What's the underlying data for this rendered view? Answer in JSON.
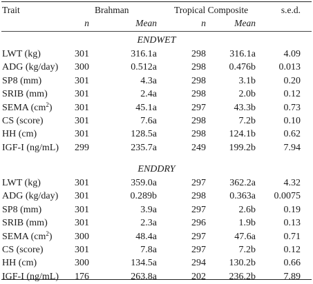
{
  "header": {
    "trait": "Trait",
    "brahman": "Brahman",
    "tropical": "Tropical Composite",
    "sed": "s.e.d.",
    "n": "n",
    "mean": "Mean",
    "n2": "n",
    "mean2": "Mean"
  },
  "sections": [
    {
      "title": "ENDWET",
      "rows": [
        {
          "trait": "LWT (kg)",
          "sup": "",
          "trait_after": "",
          "bn": "301",
          "bm": "316.1a",
          "tn": "298",
          "tm": "316.1a",
          "sed": "4.09"
        },
        {
          "trait": "ADG (kg/day)",
          "sup": "",
          "trait_after": "",
          "bn": "300",
          "bm": "0.512a",
          "tn": "298",
          "tm": "0.476b",
          "sed": "0.013"
        },
        {
          "trait": "SP8 (mm)",
          "sup": "",
          "trait_after": "",
          "bn": "301",
          "bm": "4.3a",
          "tn": "298",
          "tm": "3.1b",
          "sed": "0.20"
        },
        {
          "trait": "SRIB (mm)",
          "sup": "",
          "trait_after": "",
          "bn": "301",
          "bm": "2.4a",
          "tn": "298",
          "tm": "2.0b",
          "sed": "0.12"
        },
        {
          "trait": "SEMA (cm",
          "sup": "2",
          "trait_after": ")",
          "bn": "301",
          "bm": "45.1a",
          "tn": "297",
          "tm": "43.3b",
          "sed": "0.73"
        },
        {
          "trait": "CS (score)",
          "sup": "",
          "trait_after": "",
          "bn": "301",
          "bm": "7.6a",
          "tn": "298",
          "tm": "7.2b",
          "sed": "0.10"
        },
        {
          "trait": "HH (cm)",
          "sup": "",
          "trait_after": "",
          "bn": "301",
          "bm": "128.5a",
          "tn": "298",
          "tm": "124.1b",
          "sed": "0.62"
        },
        {
          "trait": "IGF-I (ng/mL)",
          "sup": "",
          "trait_after": "",
          "bn": "299",
          "bm": "235.7a",
          "tn": "249",
          "tm": "199.2b",
          "sed": "7.94"
        }
      ]
    },
    {
      "title": "ENDDRY",
      "rows": [
        {
          "trait": "LWT (kg)",
          "sup": "",
          "trait_after": "",
          "bn": "301",
          "bm": "359.0a",
          "tn": "297",
          "tm": "362.2a",
          "sed": "4.32"
        },
        {
          "trait": "ADG (kg/day)",
          "sup": "",
          "trait_after": "",
          "bn": "301",
          "bm": "0.289b",
          "tn": "298",
          "tm": "0.363a",
          "sed": "0.0075"
        },
        {
          "trait": "SP8 (mm)",
          "sup": "",
          "trait_after": "",
          "bn": "301",
          "bm": "3.9a",
          "tn": "297",
          "tm": "2.6b",
          "sed": "0.19"
        },
        {
          "trait": "SRIB (mm)",
          "sup": "",
          "trait_after": "",
          "bn": "301",
          "bm": "2.3a",
          "tn": "296",
          "tm": "1.9b",
          "sed": "0.13"
        },
        {
          "trait": "SEMA (cm",
          "sup": "2",
          "trait_after": ")",
          "bn": "300",
          "bm": "48.4a",
          "tn": "297",
          "tm": "47.6a",
          "sed": "0.71"
        },
        {
          "trait": "CS (score)",
          "sup": "",
          "trait_after": "",
          "bn": "301",
          "bm": "7.8a",
          "tn": "297",
          "tm": "7.2b",
          "sed": "0.12"
        },
        {
          "trait": "HH (cm)",
          "sup": "",
          "trait_after": "",
          "bn": "300",
          "bm": "134.5a",
          "tn": "294",
          "tm": "130.2b",
          "sed": "0.66"
        },
        {
          "trait": "IGF-I (ng/mL)",
          "sup": "",
          "trait_after": "",
          "bn": "176",
          "bm": "263.8a",
          "tn": "202",
          "tm": "236.2b",
          "sed": "7.89"
        }
      ]
    }
  ]
}
